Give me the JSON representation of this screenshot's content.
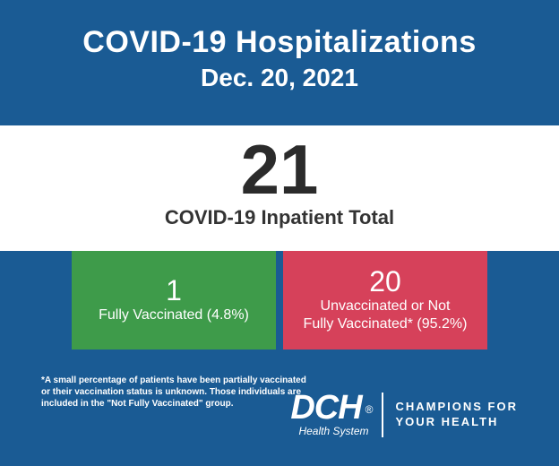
{
  "background_color": "#1a5b94",
  "header": {
    "title": "COVID-19 Hospitalizations",
    "date": "Dec. 20, 2021",
    "text_color": "#ffffff",
    "title_fontsize": 34,
    "date_fontsize": 28
  },
  "total_band": {
    "background_color": "#ffffff",
    "text_color": "#2b2b2b",
    "value": "21",
    "label": "COVID-19 Inpatient Total",
    "value_fontsize": 78,
    "label_fontsize": 22
  },
  "breakdown": {
    "vaccinated": {
      "count": 1,
      "percent": 4.8,
      "value_line": "1",
      "label_line": "Fully Vaccinated (4.8%)",
      "background_color": "#3e9b4a",
      "text_color": "#ffffff"
    },
    "unvaccinated": {
      "count": 20,
      "percent": 95.2,
      "value_line": "20",
      "label_line": "Unvaccinated or Not\nFully Vaccinated* (95.2%)",
      "background_color": "#d6415a",
      "text_color": "#ffffff"
    }
  },
  "footnote": "*A small percentage of patients have been partially vaccinated or their vaccination status is unknown. Those individuals are included in the \"Not Fully Vaccinated\" group.",
  "logo": {
    "main": "DCH",
    "trademark": "®",
    "sub": "Health System",
    "tagline": "CHAMPIONS FOR\nYOUR HEALTH",
    "text_color": "#ffffff"
  }
}
